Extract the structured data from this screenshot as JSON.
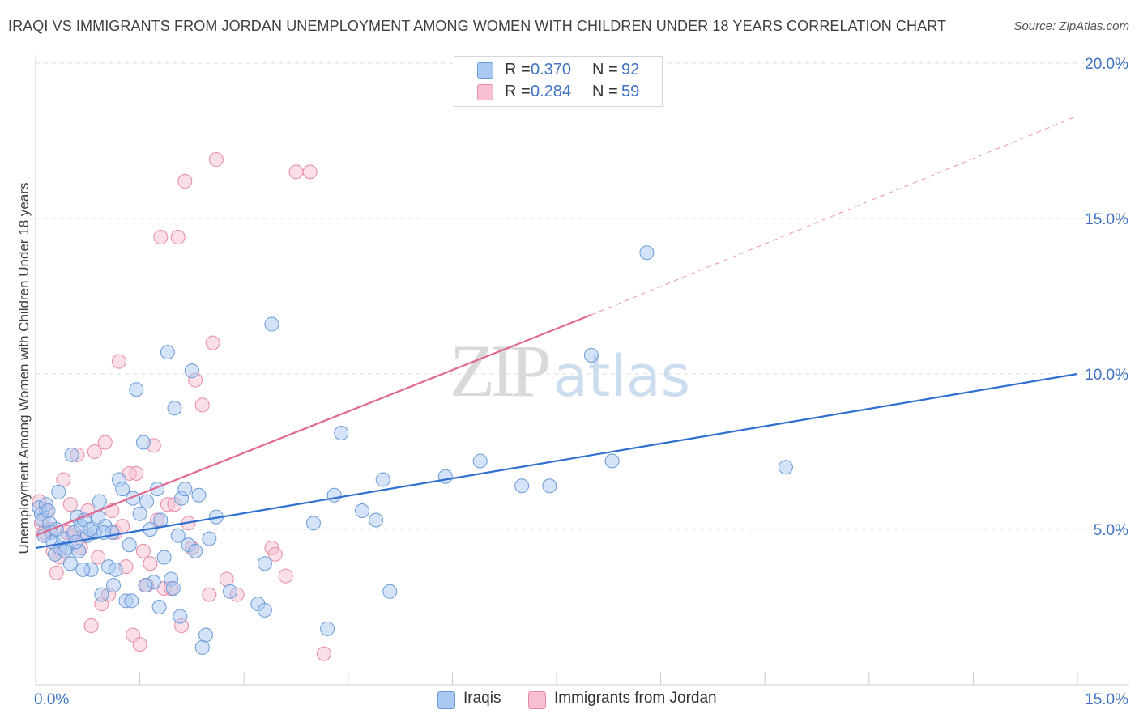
{
  "header": {
    "title": "IRAQI VS IMMIGRANTS FROM JORDAN UNEMPLOYMENT AMONG WOMEN WITH CHILDREN UNDER 18 YEARS CORRELATION CHART",
    "source": "Source: ZipAtlas.com"
  },
  "watermark": {
    "zip": "ZIP",
    "atlas": "atlas"
  },
  "legend_top": {
    "rows": [
      {
        "r_label": "R =",
        "r_value": "0.370",
        "n_label": "N =",
        "n_value": "92"
      },
      {
        "r_label": "R =",
        "r_value": "0.284",
        "n_label": "N =",
        "n_value": "59"
      }
    ]
  },
  "legend_bottom": {
    "items": [
      "Iraqis",
      "Immigrants from Jordan"
    ]
  },
  "colors": {
    "iraqis_fill": "#aac8f0",
    "iraqis_stroke": "#6a9ad8",
    "iraqis_line": "#2f6fd0",
    "jordan_fill": "#f7bfd0",
    "jordan_stroke": "#e88aa8",
    "jordan_line": "#e06892",
    "tick_label": "#3e73c4",
    "grid": "#dddddd"
  },
  "chart_data": {
    "type": "scatter",
    "title": "IRAQI VS IMMIGRANTS FROM JORDAN UNEMPLOYMENT AMONG WOMEN WITH CHILDREN UNDER 18 YEARS CORRELATION CHART",
    "xlabel": "",
    "ylabel": "Unemployment Among Women with Children Under 18 years",
    "xlim": [
      0,
      15
    ],
    "ylim": [
      0,
      20
    ],
    "x_tick_labels": [
      "0.0%",
      "15.0%"
    ],
    "y_ticks": [
      5,
      10,
      15,
      20
    ],
    "y_tick_labels": [
      "5.0%",
      "10.0%",
      "15.0%",
      "20.0%"
    ],
    "grid": "horizontal dashed",
    "legend_placement": "top-center",
    "series": [
      {
        "name": "Iraqis",
        "r": 0.37,
        "n": 92,
        "trend": {
          "x": [
            0,
            15
          ],
          "y": [
            4.4,
            10.0
          ],
          "style": "solid"
        },
        "points": [
          [
            0.05,
            5.7
          ],
          [
            0.08,
            5.5
          ],
          [
            0.1,
            5.3
          ],
          [
            0.15,
            5.8
          ],
          [
            0.2,
            5.2
          ],
          [
            0.22,
            4.9
          ],
          [
            0.25,
            4.6
          ],
          [
            0.28,
            4.2
          ],
          [
            0.3,
            5.0
          ],
          [
            0.35,
            4.4
          ],
          [
            0.4,
            4.7
          ],
          [
            0.45,
            4.4
          ],
          [
            0.5,
            3.9
          ],
          [
            0.55,
            4.9
          ],
          [
            0.6,
            5.4
          ],
          [
            0.62,
            4.3
          ],
          [
            0.65,
            5.1
          ],
          [
            0.7,
            5.3
          ],
          [
            0.75,
            4.8
          ],
          [
            0.8,
            3.7
          ],
          [
            0.85,
            4.9
          ],
          [
            0.9,
            5.4
          ],
          [
            0.95,
            2.9
          ],
          [
            1.0,
            5.1
          ],
          [
            1.05,
            3.8
          ],
          [
            1.1,
            4.9
          ],
          [
            1.15,
            3.7
          ],
          [
            1.2,
            6.6
          ],
          [
            1.25,
            6.3
          ],
          [
            1.3,
            2.7
          ],
          [
            1.35,
            4.5
          ],
          [
            1.4,
            6.0
          ],
          [
            1.45,
            9.5
          ],
          [
            1.5,
            5.5
          ],
          [
            1.55,
            7.8
          ],
          [
            1.6,
            5.9
          ],
          [
            1.65,
            5.0
          ],
          [
            1.7,
            3.3
          ],
          [
            1.75,
            6.3
          ],
          [
            1.8,
            5.3
          ],
          [
            1.85,
            4.1
          ],
          [
            1.9,
            10.7
          ],
          [
            1.95,
            3.4
          ],
          [
            2.0,
            8.9
          ],
          [
            2.05,
            4.8
          ],
          [
            2.1,
            6.0
          ],
          [
            2.15,
            6.3
          ],
          [
            2.2,
            4.5
          ],
          [
            2.25,
            10.1
          ],
          [
            2.3,
            4.3
          ],
          [
            2.35,
            6.1
          ],
          [
            2.4,
            1.2
          ],
          [
            2.45,
            1.6
          ],
          [
            2.5,
            4.7
          ],
          [
            2.6,
            5.4
          ],
          [
            2.8,
            3.0
          ],
          [
            3.2,
            2.6
          ],
          [
            3.3,
            2.4
          ],
          [
            3.4,
            11.6
          ],
          [
            3.3,
            3.9
          ],
          [
            4.0,
            5.2
          ],
          [
            4.2,
            1.8
          ],
          [
            4.3,
            6.1
          ],
          [
            4.4,
            8.1
          ],
          [
            4.7,
            5.6
          ],
          [
            4.9,
            5.3
          ],
          [
            5.0,
            6.6
          ],
          [
            5.1,
            3.0
          ],
          [
            5.9,
            6.7
          ],
          [
            6.4,
            7.2
          ],
          [
            7.0,
            6.4
          ],
          [
            7.4,
            6.4
          ],
          [
            8.0,
            10.6
          ],
          [
            8.3,
            7.2
          ],
          [
            8.8,
            13.9
          ],
          [
            10.8,
            7.0
          ],
          [
            0.12,
            4.8
          ],
          [
            0.18,
            5.6
          ],
          [
            0.33,
            6.2
          ],
          [
            0.52,
            7.4
          ],
          [
            0.68,
            3.7
          ],
          [
            0.92,
            5.9
          ],
          [
            1.12,
            3.2
          ],
          [
            1.38,
            2.7
          ],
          [
            1.58,
            3.2
          ],
          [
            1.78,
            2.5
          ],
          [
            1.98,
            3.1
          ],
          [
            2.08,
            2.2
          ],
          [
            0.42,
            4.3
          ],
          [
            0.58,
            4.6
          ],
          [
            0.78,
            5.0
          ],
          [
            0.98,
            4.9
          ]
        ]
      },
      {
        "name": "Immigrants from Jordan",
        "r": 0.284,
        "n": 59,
        "trend": {
          "x": [
            0,
            8.0,
            15
          ],
          "y": [
            4.8,
            11.9,
            18.3
          ],
          "style": "solid then dashed"
        },
        "points": [
          [
            0.05,
            5.9
          ],
          [
            0.08,
            5.2
          ],
          [
            0.12,
            4.9
          ],
          [
            0.15,
            5.6
          ],
          [
            0.2,
            5.0
          ],
          [
            0.25,
            4.3
          ],
          [
            0.3,
            3.6
          ],
          [
            0.35,
            4.1
          ],
          [
            0.4,
            6.6
          ],
          [
            0.45,
            4.9
          ],
          [
            0.5,
            5.8
          ],
          [
            0.55,
            4.8
          ],
          [
            0.6,
            7.4
          ],
          [
            0.65,
            4.4
          ],
          [
            0.7,
            4.8
          ],
          [
            0.75,
            5.6
          ],
          [
            0.8,
            1.9
          ],
          [
            0.85,
            7.5
          ],
          [
            0.9,
            4.1
          ],
          [
            0.95,
            2.6
          ],
          [
            1.0,
            7.8
          ],
          [
            1.05,
            2.9
          ],
          [
            1.1,
            5.6
          ],
          [
            1.15,
            4.9
          ],
          [
            1.2,
            10.4
          ],
          [
            1.25,
            5.1
          ],
          [
            1.3,
            3.8
          ],
          [
            1.35,
            6.8
          ],
          [
            1.4,
            1.6
          ],
          [
            1.45,
            6.8
          ],
          [
            1.5,
            1.3
          ],
          [
            1.55,
            4.3
          ],
          [
            1.6,
            3.2
          ],
          [
            1.65,
            3.9
          ],
          [
            1.7,
            7.7
          ],
          [
            1.75,
            5.3
          ],
          [
            1.8,
            14.4
          ],
          [
            1.85,
            3.1
          ],
          [
            1.9,
            5.8
          ],
          [
            1.95,
            3.1
          ],
          [
            2.0,
            5.8
          ],
          [
            2.05,
            14.4
          ],
          [
            2.1,
            1.9
          ],
          [
            2.15,
            16.2
          ],
          [
            2.2,
            5.2
          ],
          [
            2.25,
            4.4
          ],
          [
            2.3,
            9.8
          ],
          [
            2.4,
            9.0
          ],
          [
            2.5,
            2.9
          ],
          [
            2.55,
            11.0
          ],
          [
            2.6,
            16.9
          ],
          [
            2.75,
            3.4
          ],
          [
            2.9,
            2.9
          ],
          [
            3.4,
            4.4
          ],
          [
            3.45,
            4.2
          ],
          [
            3.6,
            3.5
          ],
          [
            3.75,
            16.5
          ],
          [
            3.95,
            16.5
          ],
          [
            4.15,
            1.0
          ]
        ]
      }
    ]
  }
}
